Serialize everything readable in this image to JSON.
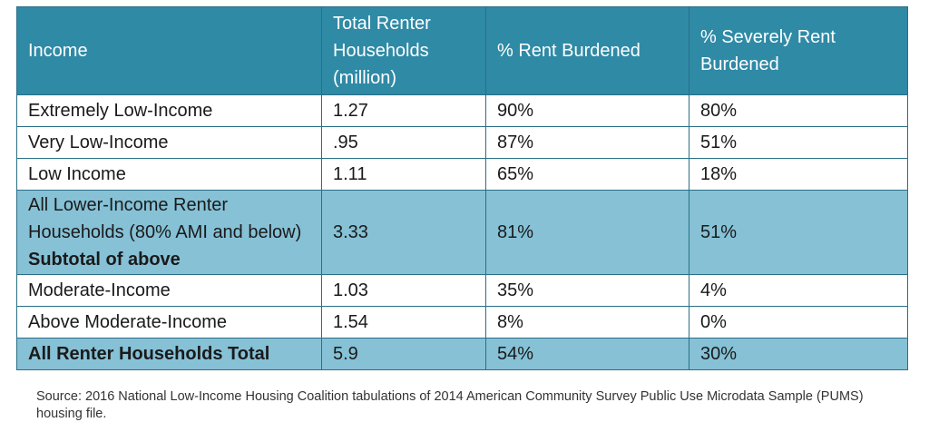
{
  "table": {
    "headers": [
      "Income",
      "Total Renter Households (million)",
      "% Rent Burdened",
      "% Severely Rent Burdened"
    ],
    "rows": [
      {
        "income": "Extremely Low-Income",
        "total": "1.27",
        "burdened": "90%",
        "severe": "80%"
      },
      {
        "income": "Very Low-Income",
        "total": ".95",
        "burdened": "87%",
        "severe": "51%"
      },
      {
        "income": "Low Income",
        "total": "1.11",
        "burdened": "65%",
        "severe": "18%"
      },
      {
        "income": "All Lower-Income Renter Households (80% AMI and below)",
        "income_suffix": "Subtotal of above",
        "total": "3.33",
        "burdened": "81%",
        "severe": "51%"
      },
      {
        "income": "Moderate-Income",
        "total": "1.03",
        "burdened": "35%",
        "severe": "4%"
      },
      {
        "income": "Above Moderate-Income",
        "total": "1.54",
        "burdened": "8%",
        "severe": "0%"
      },
      {
        "income": "All Renter Households Total",
        "total": "5.9",
        "burdened": "54%",
        "severe": "30%"
      }
    ]
  },
  "source": "Source: 2016 National Low-Income Housing Coalition tabulations of 2014 American Community Survey Public Use Microdata Sample (PUMS) housing file.",
  "colors": {
    "header_bg": "#2f8aa6",
    "highlight_bg": "#86c1d6",
    "border": "#2a6f86"
  }
}
